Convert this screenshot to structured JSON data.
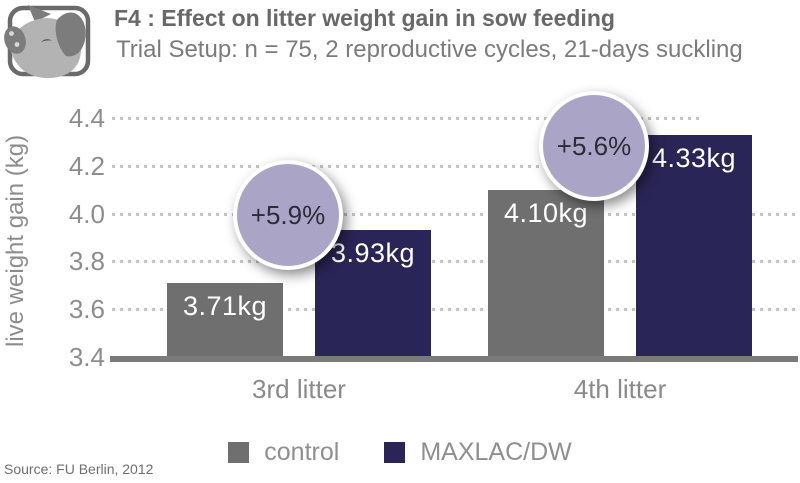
{
  "header": {
    "title": "F4 : Effect on litter weight gain in sow feeding",
    "subtitle": "Trial Setup: n = 75, 2 reproductive cycles, 21-days suckling",
    "icon": "pig-icon"
  },
  "chart_data": {
    "type": "bar",
    "categories": [
      "3rd litter",
      "4th litter"
    ],
    "series": [
      {
        "name": "control",
        "color": "#6f6f6f",
        "values": [
          3.71,
          4.1
        ],
        "labels": [
          "3.71kg",
          "4.10kg"
        ]
      },
      {
        "name": "MAXLAC/DW",
        "color": "#2a2557",
        "values": [
          3.93,
          4.33
        ],
        "labels": [
          "3.93kg",
          "4.33kg"
        ]
      }
    ],
    "annotations": [
      {
        "text": "+5.9%",
        "group": 0
      },
      {
        "text": "+5.6%",
        "group": 1
      }
    ],
    "title": "F4 : Effect on litter weight gain in sow feeding",
    "xlabel": "",
    "ylabel": "live weight gain (kg)",
    "ylim": [
      3.4,
      4.4
    ],
    "yticks": [
      {
        "label": "4.4",
        "value": 4.4
      },
      {
        "label": "4.2",
        "value": 4.2
      },
      {
        "label": "4.0",
        "value": 4.0
      },
      {
        "label": "3.8",
        "value": 3.8
      },
      {
        "label": "3.6",
        "value": 3.6
      },
      {
        "label": "3.4",
        "value": 3.4
      }
    ],
    "grid": "horizontal dotted",
    "legend_position": "bottom"
  },
  "legend": {
    "items": [
      {
        "label": "control",
        "color": "#6f6f6f"
      },
      {
        "label": "MAXLAC/DW",
        "color": "#2a2557"
      }
    ]
  },
  "footer": {
    "source": "Source: FU Berlin, 2012"
  },
  "colors": {
    "control_bar": "#6f6f6f",
    "maxlac_bar": "#2a2557",
    "annotation_fill": "#aaa5c7",
    "annotation_border": "#ffffff",
    "grid_dot": "#c5c5c5",
    "axis_line": "#7a7a7a",
    "value_label": "#ffffff"
  }
}
